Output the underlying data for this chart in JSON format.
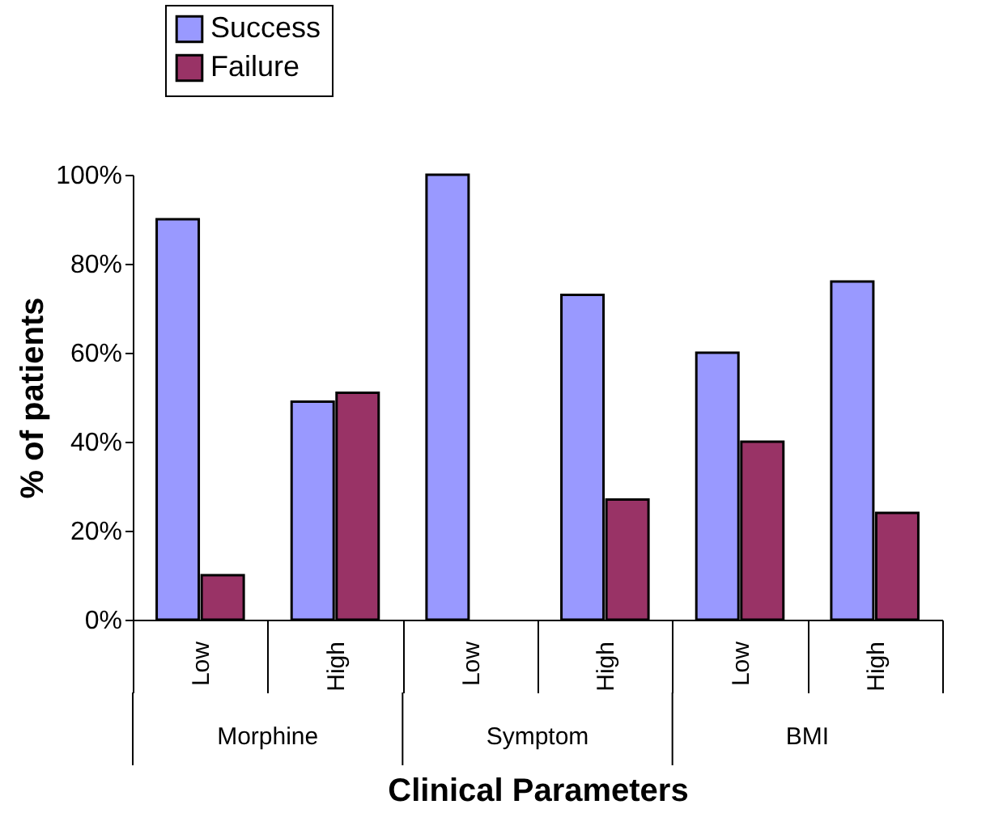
{
  "chart_data": {
    "type": "bar",
    "xlabel": "Clinical Parameters",
    "ylabel": "% of patients",
    "categories": [
      "Low",
      "High",
      "Low",
      "High",
      "Low",
      "High"
    ],
    "series": [
      {
        "name": "Success",
        "color": "#9999ff",
        "values": [
          90,
          49,
          100,
          73,
          60,
          76
        ]
      },
      {
        "name": "Failure",
        "color": "#993366",
        "values": [
          10,
          51,
          null,
          27,
          40,
          24
        ]
      }
    ],
    "annotations": [
      "Morphine",
      "Symptom",
      "BMI"
    ],
    "ylim": [
      0,
      100
    ],
    "yticks": [
      {
        "value": 0,
        "label": "0%"
      },
      {
        "value": 20,
        "label": "20%"
      },
      {
        "value": 40,
        "label": "40%"
      },
      {
        "value": 60,
        "label": "60%"
      },
      {
        "value": 80,
        "label": "80%"
      },
      {
        "value": 100,
        "label": "100%"
      }
    ],
    "grid": false,
    "legend": "top left"
  }
}
